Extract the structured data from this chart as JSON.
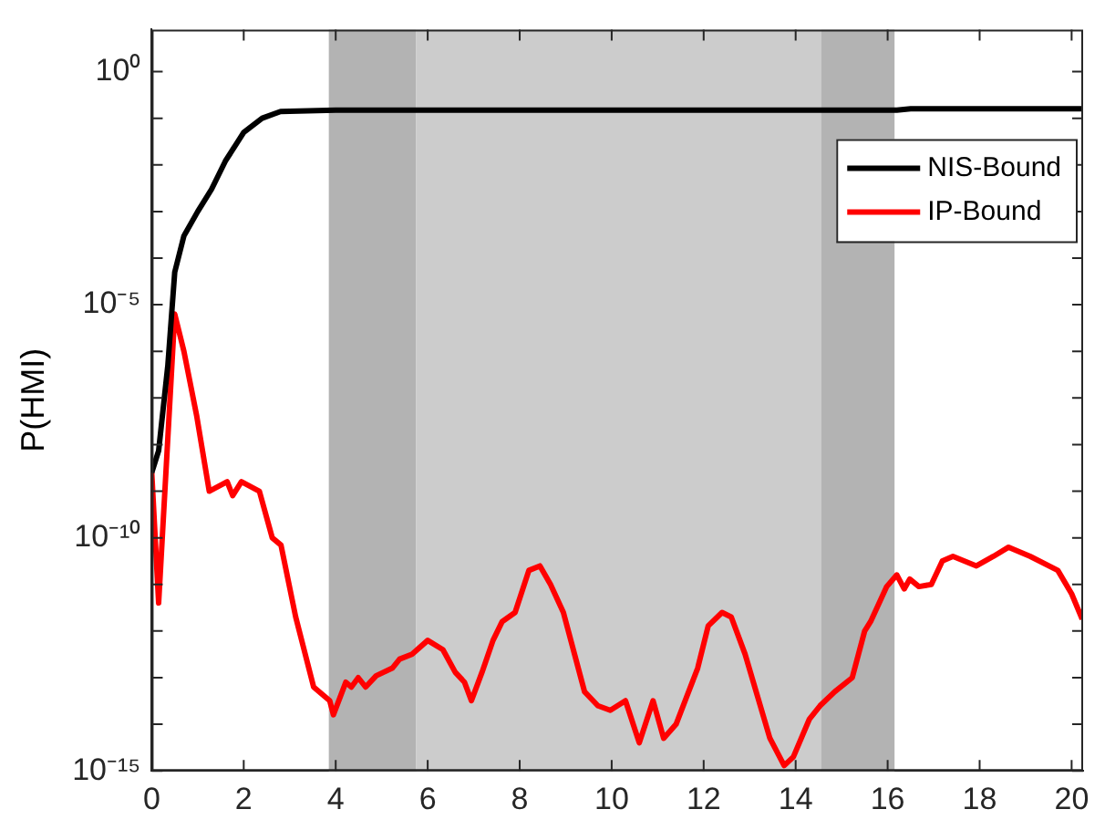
{
  "chart_data": {
    "type": "line",
    "ylabel": "P(HMI)",
    "log": "y",
    "xlim": [
      0,
      20.25
    ],
    "xticks": [
      0,
      2,
      4,
      6,
      8,
      10,
      12,
      14,
      16,
      18,
      20
    ],
    "ylim": [
      1e-15,
      8
    ],
    "yticks": [
      {
        "value": 1e-15,
        "label": "10⁻¹⁵"
      },
      {
        "value": 1e-14,
        "label": null
      },
      {
        "value": 1e-13,
        "label": null
      },
      {
        "value": 1e-12,
        "label": null
      },
      {
        "value": 1e-11,
        "label": null
      },
      {
        "value": 1e-10,
        "label": "10⁻¹⁰"
      },
      {
        "value": 1e-09,
        "label": null
      },
      {
        "value": 1e-08,
        "label": null
      },
      {
        "value": 1e-07,
        "label": null
      },
      {
        "value": 1e-06,
        "label": null
      },
      {
        "value": 1e-05,
        "label": "10⁻⁵"
      },
      {
        "value": 0.0001,
        "label": null
      },
      {
        "value": 0.001,
        "label": null
      },
      {
        "value": 0.01,
        "label": null
      },
      {
        "value": 0.1,
        "label": null
      },
      {
        "value": 1,
        "label": "10⁰"
      }
    ],
    "grid": false,
    "legend": "top right",
    "marker": "none",
    "line_style": "solid",
    "bands": [
      {
        "axis": "x",
        "from": 3.85,
        "to": 5.75,
        "color": "#b3b3b3"
      },
      {
        "axis": "x",
        "from": 5.75,
        "to": 14.55,
        "color": "#cccccc"
      },
      {
        "axis": "x",
        "from": 14.55,
        "to": 16.15,
        "color": "#b3b3b3"
      }
    ],
    "series": [
      {
        "name": "NIS-Bound",
        "color": "#000000",
        "x": [
          0,
          0.15,
          0.35,
          0.5,
          0.7,
          1.0,
          1.3,
          1.6,
          2.0,
          2.4,
          2.8,
          4,
          16.2,
          16.5,
          20.23
        ],
        "values": [
          2.5e-09,
          7.4e-09,
          5e-07,
          5e-05,
          0.0003,
          0.001,
          0.003,
          0.012,
          0.05,
          0.1,
          0.14,
          0.15,
          0.15,
          0.16,
          0.16
        ]
      },
      {
        "name": "IP-Bound",
        "color": "#ff0000",
        "x": [
          0,
          0.15,
          0.5,
          0.7,
          0.98,
          1.25,
          1.64,
          1.76,
          1.95,
          2.34,
          2.62,
          2.81,
          3.13,
          3.52,
          3.87,
          3.95,
          4.22,
          4.34,
          4.49,
          4.65,
          4.88,
          5.23,
          5.39,
          5.66,
          6.0,
          6.33,
          6.6,
          6.8,
          6.95,
          7.18,
          7.42,
          7.62,
          7.9,
          8.2,
          8.44,
          8.67,
          8.95,
          9.41,
          9.7,
          9.97,
          10.3,
          10.6,
          10.9,
          11.13,
          11.4,
          11.87,
          12.1,
          12.4,
          12.6,
          12.9,
          13.44,
          13.75,
          13.95,
          14.3,
          14.53,
          14.85,
          15.23,
          15.5,
          15.63,
          15.98,
          16.2,
          16.36,
          16.48,
          16.68,
          16.95,
          17.19,
          17.42,
          17.93,
          18.3,
          18.63,
          19.1,
          19.7,
          20.0,
          20.23
        ],
        "values": [
          2.5e-09,
          4e-12,
          6.3e-06,
          1e-06,
          4e-08,
          1e-09,
          1.6e-09,
          8e-10,
          1.6e-09,
          1e-09,
          1e-10,
          7e-11,
          2e-12,
          6.3e-14,
          3.2e-14,
          1.6e-14,
          8e-14,
          6.3e-14,
          1e-13,
          6.3e-14,
          1.1e-13,
          1.6e-13,
          2.5e-13,
          3.2e-13,
          6.3e-13,
          4e-13,
          1.3e-13,
          8e-14,
          3.2e-14,
          1.3e-13,
          6.3e-13,
          1.6e-12,
          2.5e-12,
          2e-11,
          2.5e-11,
          1e-11,
          2.5e-12,
          5e-14,
          2.5e-14,
          2e-14,
          3.2e-14,
          4e-15,
          3.2e-14,
          5e-15,
          1e-14,
          1.6e-13,
          1.3e-12,
          2.5e-12,
          2e-12,
          3.2e-13,
          5e-15,
          1.3e-15,
          2e-15,
          1.3e-14,
          2.5e-14,
          5e-14,
          1e-13,
          1e-12,
          1.6e-12,
          9e-12,
          1.6e-11,
          8e-12,
          1.3e-11,
          9e-12,
          1e-11,
          3.2e-11,
          4e-11,
          2.5e-11,
          4e-11,
          6.3e-11,
          4e-11,
          2e-11,
          6.3e-12,
          1.8e-12
        ]
      }
    ]
  }
}
